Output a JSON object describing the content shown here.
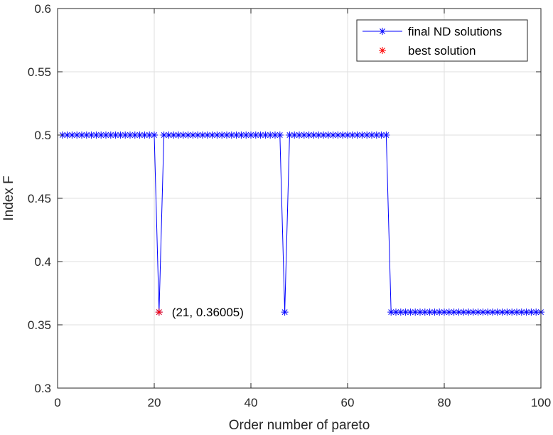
{
  "chart_data": {
    "type": "line",
    "xlabel": "Order number of pareto",
    "ylabel": "Index F",
    "xlim": [
      0,
      100
    ],
    "ylim": [
      0.3,
      0.6
    ],
    "xticks": [
      0,
      20,
      40,
      60,
      80,
      100
    ],
    "yticks": [
      0.3,
      0.35,
      0.4,
      0.45,
      0.5,
      0.55,
      0.6
    ],
    "ytick_labels": [
      "0.3",
      "0.35",
      "0.4",
      "0.45",
      "0.5",
      "0.55",
      "0.6"
    ],
    "grid": true,
    "legend_position": "top-right",
    "series": [
      {
        "name": "final ND solutions",
        "color": "#0000ff",
        "marker": "asterisk",
        "line": "solid",
        "x": [
          1,
          2,
          3,
          4,
          5,
          6,
          7,
          8,
          9,
          10,
          11,
          12,
          13,
          14,
          15,
          16,
          17,
          18,
          19,
          20,
          21,
          22,
          23,
          24,
          25,
          26,
          27,
          28,
          29,
          30,
          31,
          32,
          33,
          34,
          35,
          36,
          37,
          38,
          39,
          40,
          41,
          42,
          43,
          44,
          45,
          46,
          47,
          48,
          49,
          50,
          51,
          52,
          53,
          54,
          55,
          56,
          57,
          58,
          59,
          60,
          61,
          62,
          63,
          64,
          65,
          66,
          67,
          68,
          69,
          70,
          71,
          72,
          73,
          74,
          75,
          76,
          77,
          78,
          79,
          80,
          81,
          82,
          83,
          84,
          85,
          86,
          87,
          88,
          89,
          90,
          91,
          92,
          93,
          94,
          95,
          96,
          97,
          98,
          99,
          100
        ],
        "y": [
          0.5,
          0.5,
          0.5,
          0.5,
          0.5,
          0.5,
          0.5,
          0.5,
          0.5,
          0.5,
          0.5,
          0.5,
          0.5,
          0.5,
          0.5,
          0.5,
          0.5,
          0.5,
          0.5,
          0.5,
          0.36005,
          0.5,
          0.5,
          0.5,
          0.5,
          0.5,
          0.5,
          0.5,
          0.5,
          0.5,
          0.5,
          0.5,
          0.5,
          0.5,
          0.5,
          0.5,
          0.5,
          0.5,
          0.5,
          0.5,
          0.5,
          0.5,
          0.5,
          0.5,
          0.5,
          0.5,
          0.36005,
          0.5,
          0.5,
          0.5,
          0.5,
          0.5,
          0.5,
          0.5,
          0.5,
          0.5,
          0.5,
          0.5,
          0.5,
          0.5,
          0.5,
          0.5,
          0.5,
          0.5,
          0.5,
          0.5,
          0.5,
          0.5,
          0.36005,
          0.36005,
          0.36005,
          0.36005,
          0.36005,
          0.36005,
          0.36005,
          0.36005,
          0.36005,
          0.36005,
          0.36005,
          0.36005,
          0.36005,
          0.36005,
          0.36005,
          0.36005,
          0.36005,
          0.36005,
          0.36005,
          0.36005,
          0.36005,
          0.36005,
          0.36005,
          0.36005,
          0.36005,
          0.36005,
          0.36005,
          0.36005,
          0.36005,
          0.36005,
          0.36005,
          0.36005
        ]
      },
      {
        "name": "best solution",
        "color": "#ff0000",
        "marker": "asterisk",
        "line": "none",
        "x": [
          21
        ],
        "y": [
          0.36005
        ]
      }
    ],
    "annotations": [
      {
        "text": "(21, 0.36005)",
        "x": 21,
        "y": 0.36005
      }
    ]
  }
}
